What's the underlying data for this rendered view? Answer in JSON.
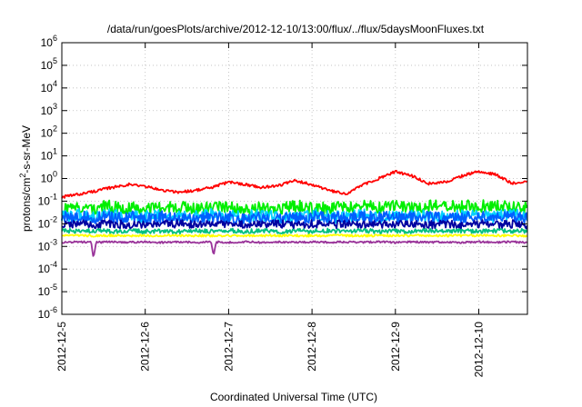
{
  "chart_data": {
    "type": "line",
    "title": "/data/run/goesPlots/archive/2012-12-10/13:00/flux/../flux/5daysMoonFluxes.txt",
    "xlabel": "Coordinated Universal Time (UTC)",
    "ylabel": {
      "base": "protons/cm",
      "sup": "2",
      "rest": "-s-sr-MeV"
    },
    "x_ticks": [
      "2012-12-5",
      "2012-12-6",
      "2012-12-7",
      "2012-12-8",
      "2012-12-9",
      "2012-12-10"
    ],
    "xlim": [
      "2012-12-05T00:00",
      "2012-12-10T14:00"
    ],
    "y_scale": "log",
    "ylim": [
      1e-06,
      1000000.0
    ],
    "y_ticks": [
      {
        "value": 1e-06,
        "base": "10",
        "exp": "-6"
      },
      {
        "value": 1e-05,
        "base": "10",
        "exp": "-5"
      },
      {
        "value": 0.0001,
        "base": "10",
        "exp": "-4"
      },
      {
        "value": 0.001,
        "base": "10",
        "exp": "-3"
      },
      {
        "value": 0.01,
        "base": "10",
        "exp": "-2"
      },
      {
        "value": 0.1,
        "base": "10",
        "exp": "-1"
      },
      {
        "value": 1.0,
        "base": "10",
        "exp": "0"
      },
      {
        "value": 10.0,
        "base": "10",
        "exp": "1"
      },
      {
        "value": 100.0,
        "base": "10",
        "exp": "2"
      },
      {
        "value": 1000.0,
        "base": "10",
        "exp": "3"
      },
      {
        "value": 10000.0,
        "base": "10",
        "exp": "4"
      },
      {
        "value": 100000.0,
        "base": "10",
        "exp": "5"
      },
      {
        "value": 1000000.0,
        "base": "10",
        "exp": "6"
      }
    ],
    "grid": true,
    "legend": "none",
    "x_days": [
      0,
      0.2,
      0.4,
      0.6,
      0.8,
      1.0,
      1.2,
      1.4,
      1.6,
      1.8,
      2.0,
      2.2,
      2.4,
      2.6,
      2.8,
      3.0,
      3.2,
      3.4,
      3.6,
      3.8,
      4.0,
      4.2,
      4.4,
      4.6,
      4.8,
      5.0,
      5.2,
      5.4,
      5.58
    ],
    "series": [
      {
        "color": "#ff0000",
        "noise": 0.06,
        "values": [
          0.15,
          0.2,
          0.28,
          0.4,
          0.55,
          0.45,
          0.3,
          0.25,
          0.3,
          0.4,
          0.7,
          0.55,
          0.4,
          0.5,
          0.8,
          0.55,
          0.3,
          0.2,
          0.5,
          1.0,
          2.0,
          1.3,
          0.6,
          0.7,
          1.3,
          2.1,
          1.5,
          0.6,
          0.8
        ]
      },
      {
        "color": "#00ee00",
        "noise": 0.28,
        "values": [
          0.04,
          0.05,
          0.05,
          0.06,
          0.05,
          0.05,
          0.05,
          0.06,
          0.05,
          0.05,
          0.06,
          0.05,
          0.05,
          0.05,
          0.06,
          0.05,
          0.05,
          0.05,
          0.06,
          0.05,
          0.06,
          0.05,
          0.06,
          0.06,
          0.06,
          0.06,
          0.06,
          0.05,
          0.06
        ]
      },
      {
        "color": "#00d0ff",
        "noise": 0.28,
        "values": [
          0.02,
          0.025,
          0.02,
          0.025,
          0.02,
          0.02,
          0.025,
          0.02,
          0.02,
          0.025,
          0.02,
          0.02,
          0.025,
          0.02,
          0.02,
          0.025,
          0.02,
          0.02,
          0.025,
          0.02,
          0.02,
          0.025,
          0.02,
          0.02,
          0.025,
          0.02,
          0.02,
          0.025,
          0.02
        ]
      },
      {
        "color": "#0060ff",
        "noise": 0.26,
        "values": [
          0.02,
          0.02,
          0.018,
          0.02,
          0.02,
          0.018,
          0.02,
          0.02,
          0.018,
          0.02,
          0.02,
          0.018,
          0.02,
          0.02,
          0.018,
          0.02,
          0.02,
          0.018,
          0.02,
          0.02,
          0.018,
          0.02,
          0.02,
          0.018,
          0.02,
          0.02,
          0.018,
          0.02,
          0.02
        ]
      },
      {
        "color": "#0000a0",
        "noise": 0.18,
        "values": [
          0.009,
          0.01,
          0.009,
          0.01,
          0.009,
          0.01,
          0.009,
          0.01,
          0.009,
          0.01,
          0.009,
          0.01,
          0.009,
          0.01,
          0.009,
          0.01,
          0.009,
          0.01,
          0.009,
          0.01,
          0.009,
          0.01,
          0.009,
          0.01,
          0.009,
          0.01,
          0.009,
          0.01,
          0.009
        ]
      },
      {
        "color": "#00c080",
        "noise": 0.1,
        "values": [
          0.005,
          0.0045,
          0.005,
          0.0045,
          0.005,
          0.0045,
          0.005,
          0.0045,
          0.005,
          0.0045,
          0.005,
          0.0045,
          0.005,
          0.0045,
          0.005,
          0.0045,
          0.005,
          0.0045,
          0.005,
          0.0045,
          0.005,
          0.0045,
          0.005,
          0.0045,
          0.005,
          0.0045,
          0.005,
          0.0045,
          0.005
        ]
      },
      {
        "color": "#ffff00",
        "noise": 0.05,
        "values": [
          0.003,
          0.003,
          0.003,
          0.003,
          0.003,
          0.003,
          0.003,
          0.003,
          0.003,
          0.003,
          0.003,
          0.003,
          0.003,
          0.003,
          0.003,
          0.003,
          0.003,
          0.003,
          0.003,
          0.003,
          0.003,
          0.003,
          0.003,
          0.003,
          0.003,
          0.003,
          0.003,
          0.003,
          0.003
        ]
      },
      {
        "color": "#993399",
        "noise": 0.04,
        "values": [
          0.0015,
          0.0016,
          0.0015,
          0.0016,
          0.0015,
          0.0016,
          0.0015,
          0.0016,
          0.0015,
          0.0016,
          0.0015,
          0.0016,
          0.0015,
          0.0016,
          0.0015,
          0.0016,
          0.0015,
          0.0016,
          0.0015,
          0.0016,
          0.0015,
          0.0016,
          0.0015,
          0.0016,
          0.0015,
          0.0016,
          0.0015,
          0.0016,
          0.0015
        ],
        "dips": [
          {
            "x": 0.38,
            "value": 0.0003
          },
          {
            "x": 1.82,
            "value": 0.0004
          }
        ]
      }
    ]
  }
}
